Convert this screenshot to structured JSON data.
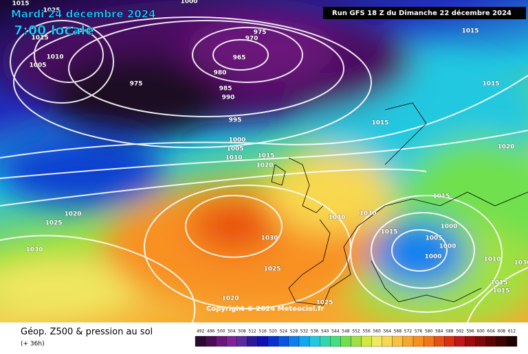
{
  "header": {
    "date": "Mardi 24 décembre 2024",
    "time": "7:00 locale",
    "run": "Run GFS 18 Z du Dimanche 22 décembre 2024"
  },
  "map": {
    "isobar_labels": [
      "1015",
      "1000",
      "1025",
      "1015",
      "1010",
      "1005",
      "975",
      "970",
      "965",
      "980",
      "975",
      "985",
      "990",
      "995",
      "1000",
      "1005",
      "1010",
      "1015",
      "1020",
      "1015",
      "1015",
      "1015",
      "1020",
      "1015",
      "1030",
      "1030",
      "1015",
      "1000",
      "1005",
      "1000",
      "1000",
      "1010",
      "1030",
      "1025",
      "1020",
      "1025",
      "1020",
      "1025",
      "1030",
      "1015",
      "1015",
      "1030"
    ],
    "copyright": "Copyright © 2024 Meteociel.fr"
  },
  "footer": {
    "title": "Géop. Z500 & pression au sol",
    "lead": "(+ 36h)"
  },
  "legend": {
    "values": [
      492,
      496,
      500,
      504,
      508,
      512,
      516,
      520,
      524,
      528,
      532,
      536,
      540,
      544,
      548,
      552,
      556,
      560,
      564,
      568,
      572,
      576,
      580,
      584,
      588,
      592,
      596,
      600,
      604,
      608,
      612
    ],
    "colors": [
      "#2a0a30",
      "#4a0a55",
      "#6a157a",
      "#80209a",
      "#5a2aa0",
      "#2a1a9a",
      "#1010b0",
      "#0a30d0",
      "#0a55e0",
      "#0a80f0",
      "#10a8f0",
      "#20c8e0",
      "#30d8b0",
      "#40e080",
      "#70e050",
      "#a0e040",
      "#d0e840",
      "#f0e860",
      "#f8d850",
      "#f8c040",
      "#f8a830",
      "#f89020",
      "#f07818",
      "#e85010",
      "#d83010",
      "#c01818",
      "#a00a0a",
      "#800808",
      "#600404",
      "#400202",
      "#200000"
    ]
  }
}
